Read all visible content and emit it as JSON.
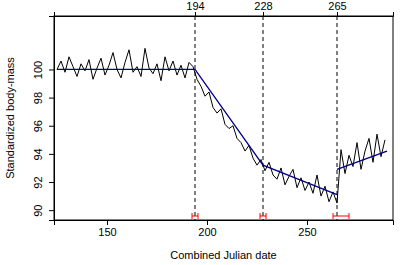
{
  "chart_data": {
    "type": "line",
    "x_label": "Combined Julian date",
    "y_label": "Standardized body-mass",
    "xlim": [
      123.5,
      293
    ],
    "xticks": [
      150,
      200,
      250
    ],
    "ylim": [
      89.3,
      103.8
    ],
    "yticks": [
      90,
      92,
      94,
      96,
      98,
      100
    ],
    "vlines": [
      194,
      228,
      265
    ],
    "series": [
      {
        "color": "#000000",
        "line_style": "solid",
        "x": [
          125,
          127,
          129,
          131,
          133,
          135,
          137,
          139,
          141,
          143,
          145,
          147,
          149,
          151,
          153,
          155,
          157,
          159,
          161,
          163,
          165,
          167,
          169,
          171,
          173,
          175,
          177,
          179,
          181,
          183,
          185,
          187,
          189,
          191,
          193,
          195,
          197,
          199,
          201,
          203,
          205,
          207,
          209,
          211,
          213,
          215,
          217,
          219,
          221,
          223,
          225,
          227,
          229,
          231,
          233,
          235,
          237,
          239,
          241,
          243,
          245,
          247,
          249,
          251,
          253,
          255,
          257,
          259,
          261,
          263,
          265,
          267,
          269,
          271,
          273,
          275,
          277,
          279,
          281,
          283,
          285,
          287,
          289
        ],
        "values": [
          100.0,
          100.6,
          99.8,
          100.9,
          100.2,
          99.5,
          100.4,
          99.9,
          100.7,
          99.3,
          100.1,
          100.8,
          99.6,
          100.3,
          101.2,
          100.0,
          99.4,
          100.5,
          101.4,
          99.8,
          100.2,
          99.5,
          101.5,
          100.1,
          99.7,
          100.4,
          99.2,
          100.9,
          99.9,
          100.6,
          99.6,
          100.3,
          99.4,
          100.5,
          100.2,
          99.3,
          98.8,
          98.1,
          98.4,
          97.3,
          96.9,
          97.2,
          96.1,
          95.8,
          96.0,
          95.1,
          94.8,
          94.2,
          94.6,
          93.7,
          93.2,
          93.6,
          92.8,
          93.4,
          92.5,
          92.2,
          93.0,
          91.8,
          92.4,
          92.9,
          91.6,
          92.3,
          91.4,
          92.0,
          91.2,
          92.5,
          91.0,
          91.7,
          90.6,
          91.3,
          90.5,
          94.3,
          92.6,
          93.9,
          93.1,
          94.8,
          92.9,
          94.2,
          95.1,
          93.4,
          95.4,
          93.8,
          95.0
        ]
      },
      {
        "color": "#00008b",
        "line_style": "solid",
        "x": [
          125,
          194,
          228,
          265,
          265,
          265,
          290
        ],
        "values": [
          100.0,
          100.0,
          93.2,
          91.1,
          null,
          92.9,
          94.2
        ]
      }
    ],
    "breakpoint_ci": {
      "color": "#ff0000",
      "lower": [
        192.5,
        226.5,
        263
      ],
      "upper": [
        195.5,
        229.5,
        271
      ]
    }
  }
}
